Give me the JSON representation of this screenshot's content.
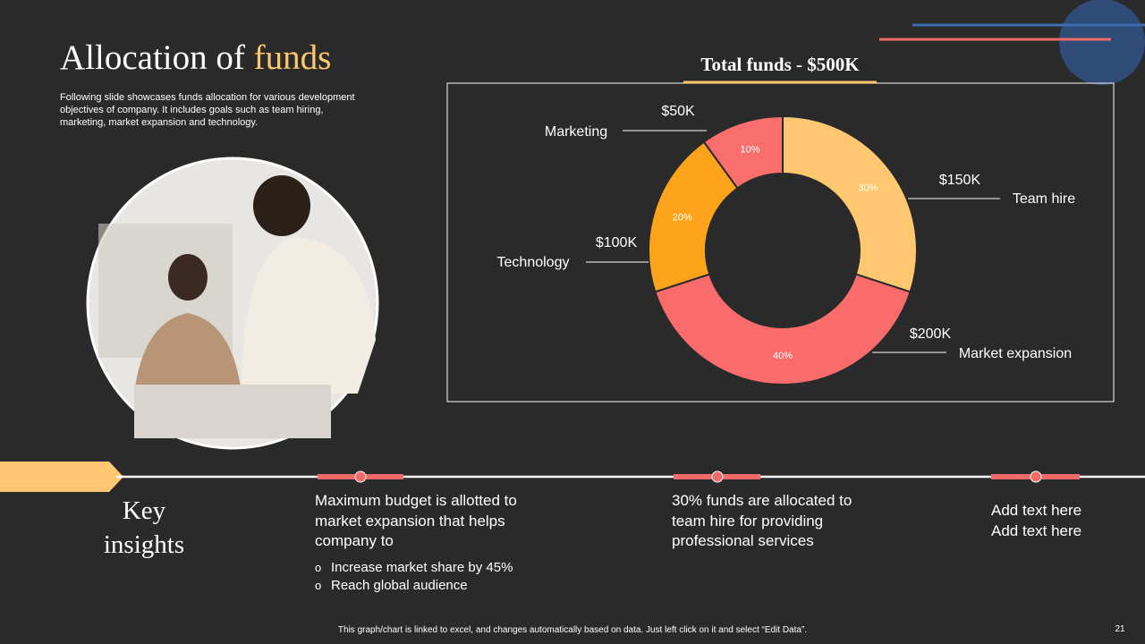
{
  "header": {
    "title": "Allocation of",
    "title_highlight": "funds",
    "description": "Following slide showcases funds allocation for various development objectives of company. It includes goals such as team hiring, marketing, market expansion and technology."
  },
  "chart_data": {
    "type": "donut",
    "title": "Total funds - $500K",
    "categories": [
      "Team hire",
      "Market expansion",
      "Technology",
      "Marketing"
    ],
    "values": [
      30,
      40,
      20,
      10
    ],
    "value_labels": [
      "30%",
      "40%",
      "20%",
      "10%"
    ],
    "amount_labels": [
      "$150K",
      "$200K",
      "$100K",
      "$50K"
    ],
    "colors": [
      "#ffc870",
      "#fa6b6b",
      "#ffa31a",
      "#fa6e6e"
    ]
  },
  "insights": {
    "heading": [
      "Key",
      "insights"
    ],
    "items": [
      {
        "text": "Maximum budget is allotted to market expansion that helps company to",
        "bullets": [
          "Increase market share by 45%",
          "Reach global audience"
        ]
      },
      {
        "text": "30% funds are allocated to team hire for providing professional services"
      },
      {
        "lines": [
          "Add text here",
          "Add text here"
        ]
      }
    ]
  },
  "footer": {
    "note": "This graph/chart is linked to excel, and changes automatically based on data. Just left click on it and select “Edit Data”.",
    "page_number": "21"
  }
}
